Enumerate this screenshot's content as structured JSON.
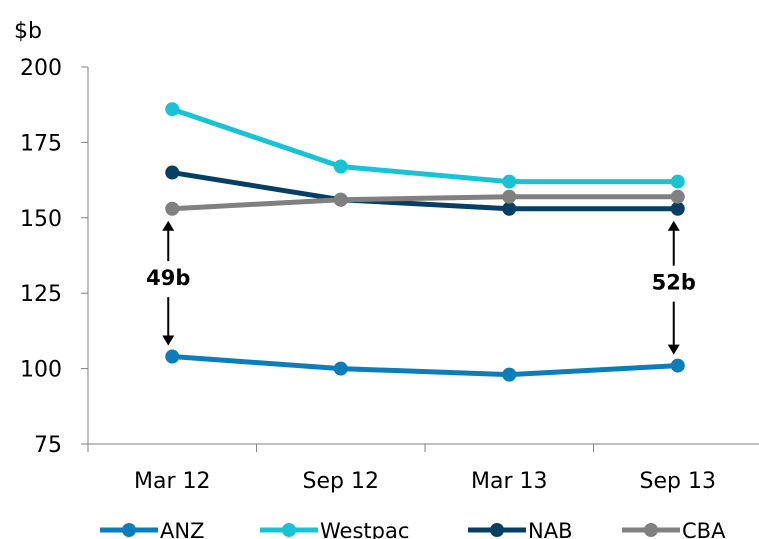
{
  "chart_data": {
    "type": "line",
    "ylabel": "$b",
    "categories": [
      "Mar 12",
      "Sep 12",
      "Mar 13",
      "Sep 13"
    ],
    "ylim": [
      75,
      200
    ],
    "yticks": [
      75,
      100,
      125,
      150,
      175,
      200
    ],
    "grid": false,
    "legend": "bottom",
    "series": [
      {
        "name": "ANZ",
        "color": "#0a7dbd",
        "values": [
          104,
          100,
          98,
          101
        ]
      },
      {
        "name": "Westpac",
        "color": "#17c4d6",
        "values": [
          186,
          167,
          162,
          162
        ]
      },
      {
        "name": "NAB",
        "color": "#053f63",
        "values": [
          165,
          156,
          153,
          153
        ]
      },
      {
        "name": "CBA",
        "color": "#808080",
        "values": [
          153,
          156,
          157,
          157
        ]
      }
    ],
    "annotations": [
      {
        "text": "49b",
        "category": "Mar 12",
        "from": 104,
        "to": 153
      },
      {
        "text": "52b",
        "category": "Sep 13",
        "from": 101,
        "to": 153
      }
    ]
  }
}
